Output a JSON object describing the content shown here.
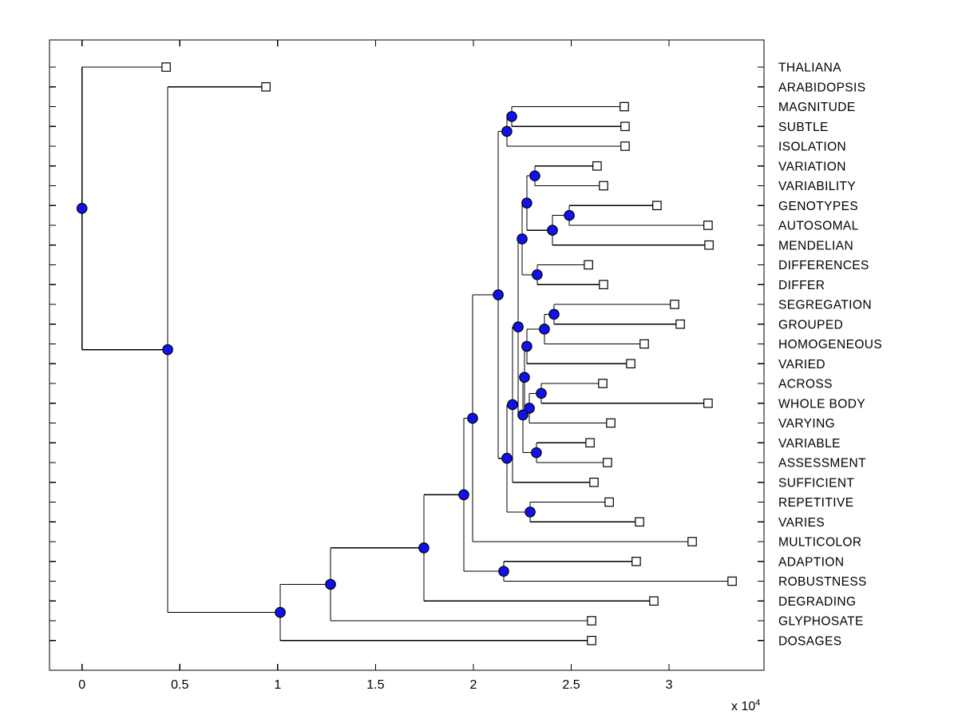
{
  "figure": {
    "background": "#ffffff",
    "axes_color": "#000000"
  },
  "chart_data": {
    "type": "dendrogram",
    "orientation": "horizontal-root-left",
    "title": "",
    "x_axis": {
      "multiplier_text": "x 10",
      "exponent": "4",
      "xlim": [
        -1660,
        34850
      ],
      "ticks": [
        {
          "v": 0,
          "label": "0"
        },
        {
          "v": 5000,
          "label": "0.5"
        },
        {
          "v": 10000,
          "label": "1"
        },
        {
          "v": 15000,
          "label": "1.5"
        },
        {
          "v": 20000,
          "label": "2"
        },
        {
          "v": 25000,
          "label": "2.5"
        },
        {
          "v": 30000,
          "label": "3"
        }
      ]
    },
    "style": {
      "branch_color": "#000000",
      "internal_node_fill": "#1111ee",
      "internal_node_stroke": "#000000",
      "leaf_marker_fill": "#ffffff",
      "leaf_marker_stroke": "#000000",
      "label_color": "#000000"
    },
    "leaves": [
      {
        "id": "L0",
        "label": "THALIANA",
        "x": 4300
      },
      {
        "id": "L1",
        "label": "ARABIDOPSIS",
        "x": 9400
      },
      {
        "id": "L2",
        "label": "MAGNITUDE",
        "x": 27710
      },
      {
        "id": "L3",
        "label": "SUBTLE",
        "x": 27750
      },
      {
        "id": "L4",
        "label": "ISOLATION",
        "x": 27750
      },
      {
        "id": "L5",
        "label": "VARIATION",
        "x": 26320
      },
      {
        "id": "L6",
        "label": "VARIABILITY",
        "x": 26650
      },
      {
        "id": "L7",
        "label": "GENOTYPES",
        "x": 29380
      },
      {
        "id": "L8",
        "label": "AUTOSOMAL",
        "x": 31990
      },
      {
        "id": "L9",
        "label": "MENDELIAN",
        "x": 32040
      },
      {
        "id": "L10",
        "label": "DIFFERENCES",
        "x": 25880
      },
      {
        "id": "L11",
        "label": "DIFFER",
        "x": 26650
      },
      {
        "id": "L12",
        "label": "SEGREGATION",
        "x": 30280
      },
      {
        "id": "L13",
        "label": "GROUPED",
        "x": 30570
      },
      {
        "id": "L14",
        "label": "HOMOGENEOUS",
        "x": 28730
      },
      {
        "id": "L15",
        "label": "VARIED",
        "x": 28040
      },
      {
        "id": "L16",
        "label": "ACROSS",
        "x": 26610
      },
      {
        "id": "L17",
        "label": "WHOLE BODY",
        "x": 31990
      },
      {
        "id": "L18",
        "label": "VARYING",
        "x": 27020
      },
      {
        "id": "L19",
        "label": "VARIABLE",
        "x": 25960
      },
      {
        "id": "L20",
        "label": "ASSESSMENT",
        "x": 26850
      },
      {
        "id": "L21",
        "label": "SUFFICIENT",
        "x": 26160
      },
      {
        "id": "L22",
        "label": "REPETITIVE",
        "x": 26940
      },
      {
        "id": "L23",
        "label": "VARIES",
        "x": 28490
      },
      {
        "id": "L24",
        "label": "MULTICOLOR",
        "x": 31180
      },
      {
        "id": "L25",
        "label": "ADAPTION",
        "x": 28320
      },
      {
        "id": "L26",
        "label": "ROBUSTNESS",
        "x": 33220
      },
      {
        "id": "L27",
        "label": "DEGRADING",
        "x": 29220
      },
      {
        "id": "L28",
        "label": "GLYPHOSATE",
        "x": 26040
      },
      {
        "id": "L29",
        "label": "DOSAGES",
        "x": 26040
      }
    ],
    "nodes": [
      {
        "id": "n1",
        "x": 21960,
        "children": [
          "L2",
          "L3"
        ]
      },
      {
        "id": "n2",
        "x": 21710,
        "children": [
          "n1",
          "L4"
        ]
      },
      {
        "id": "n3",
        "x": 23140,
        "children": [
          "L5",
          "L6"
        ]
      },
      {
        "id": "n4",
        "x": 24900,
        "children": [
          "L7",
          "L8"
        ]
      },
      {
        "id": "n5",
        "x": 24040,
        "children": [
          "n4",
          "L9"
        ]
      },
      {
        "id": "n6",
        "x": 22730,
        "children": [
          "n3",
          "n5"
        ]
      },
      {
        "id": "n7",
        "x": 23260,
        "children": [
          "L10",
          "L11"
        ]
      },
      {
        "id": "n8",
        "x": 22490,
        "children": [
          "n6",
          "n7"
        ]
      },
      {
        "id": "n9",
        "x": 24120,
        "children": [
          "L12",
          "L13"
        ]
      },
      {
        "id": "n10",
        "x": 23630,
        "children": [
          "n9",
          "L14"
        ]
      },
      {
        "id": "n11",
        "x": 22730,
        "children": [
          "n10",
          "L15"
        ]
      },
      {
        "id": "n12",
        "x": 23470,
        "children": [
          "L16",
          "L17"
        ]
      },
      {
        "id": "n13",
        "x": 22860,
        "children": [
          "n12",
          "L18"
        ]
      },
      {
        "id": "n14",
        "x": 22610,
        "children": [
          "n11",
          "n13"
        ]
      },
      {
        "id": "n15",
        "x": 23220,
        "children": [
          "L19",
          "L20"
        ]
      },
      {
        "id": "n16",
        "x": 22530,
        "children": [
          "n14",
          "n15"
        ]
      },
      {
        "id": "n17",
        "x": 22290,
        "children": [
          "n8",
          "n16"
        ]
      },
      {
        "id": "n18",
        "x": 22000,
        "children": [
          "n17",
          "L21"
        ]
      },
      {
        "id": "n19",
        "x": 22900,
        "children": [
          "L22",
          "L23"
        ]
      },
      {
        "id": "n20",
        "x": 21710,
        "children": [
          "n18",
          "n19"
        ]
      },
      {
        "id": "n21",
        "x": 21270,
        "children": [
          "n2",
          "n20"
        ]
      },
      {
        "id": "n22",
        "x": 19960,
        "children": [
          "n21",
          "L24"
        ]
      },
      {
        "id": "n23",
        "x": 21550,
        "children": [
          "L25",
          "L26"
        ]
      },
      {
        "id": "n24",
        "x": 19510,
        "children": [
          "n22",
          "n23"
        ]
      },
      {
        "id": "n25",
        "x": 17470,
        "children": [
          "n24",
          "L27"
        ]
      },
      {
        "id": "n26",
        "x": 12700,
        "children": [
          "n25",
          "L28"
        ]
      },
      {
        "id": "n27",
        "x": 10130,
        "children": [
          "n26",
          "L29"
        ]
      },
      {
        "id": "n28",
        "x": 4380,
        "children": [
          "L1",
          "n27"
        ]
      },
      {
        "id": "n29",
        "x": 0,
        "children": [
          "L0",
          "n28"
        ]
      }
    ]
  }
}
